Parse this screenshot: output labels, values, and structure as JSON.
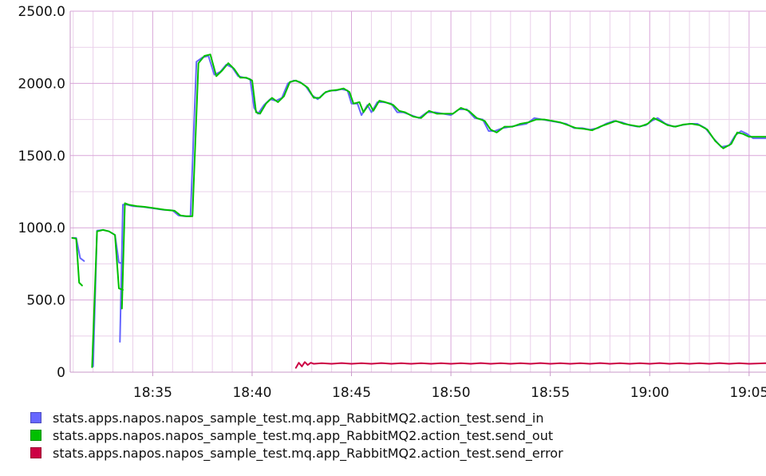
{
  "chart_data": {
    "type": "line",
    "title": "",
    "xlabel": "",
    "ylabel": "",
    "grid": true,
    "legend_position": "bottom-left",
    "x_unit": "minutes since 18:30",
    "xlim": [
      0.85,
      35.85
    ],
    "ylim": [
      0,
      2500
    ],
    "x_ticks": [
      {
        "x": 5,
        "label": "18:35"
      },
      {
        "x": 10,
        "label": "18:40"
      },
      {
        "x": 15,
        "label": "18:45"
      },
      {
        "x": 20,
        "label": "18:50"
      },
      {
        "x": 25,
        "label": "18:55"
      },
      {
        "x": 30,
        "label": "19:00"
      },
      {
        "x": 35,
        "label": "19:05"
      }
    ],
    "y_ticks": [
      {
        "y": 0,
        "label": "0"
      },
      {
        "y": 500,
        "label": "500.0"
      },
      {
        "y": 1000,
        "label": "1000.0"
      },
      {
        "y": 1500,
        "label": "1500.0"
      },
      {
        "y": 2000,
        "label": "2000.0"
      },
      {
        "y": 2500,
        "label": "2500.0"
      }
    ],
    "series": [
      {
        "name": "stats.apps.napos.napos_sample_test.mq.app_RabbitMQ2.action_test.send_in",
        "color": "#6666ff",
        "segments": [
          [
            [
              0.95,
              930
            ],
            [
              1.15,
              930
            ],
            [
              1.35,
              790
            ],
            [
              1.55,
              770
            ]
          ],
          [
            [
              2.0,
              40
            ],
            [
              2.2,
              980
            ],
            [
              2.5,
              985
            ],
            [
              2.8,
              975
            ],
            [
              3.1,
              950
            ],
            [
              3.3,
              760
            ],
            [
              3.5,
              750
            ]
          ],
          [
            [
              3.35,
              210
            ],
            [
              3.5,
              1160
            ],
            [
              3.7,
              1160
            ],
            [
              4.0,
              1150
            ],
            [
              4.5,
              1145
            ],
            [
              5.0,
              1135
            ],
            [
              5.5,
              1125
            ],
            [
              6.0,
              1120
            ],
            [
              6.3,
              1085
            ],
            [
              6.6,
              1080
            ],
            [
              6.9,
              1080
            ],
            [
              7.2,
              2150
            ],
            [
              7.5,
              2180
            ],
            [
              7.8,
              2190
            ],
            [
              8.1,
              2060
            ],
            [
              8.4,
              2080
            ],
            [
              8.7,
              2130
            ],
            [
              9.0,
              2110
            ],
            [
              9.3,
              2050
            ],
            [
              9.6,
              2040
            ],
            [
              9.9,
              2030
            ],
            [
              10.1,
              1830
            ],
            [
              10.3,
              1790
            ],
            [
              10.6,
              1850
            ],
            [
              10.9,
              1890
            ],
            [
              11.2,
              1880
            ],
            [
              11.5,
              1900
            ],
            [
              11.8,
              2000
            ],
            [
              12.1,
              2020
            ],
            [
              12.4,
              2010
            ],
            [
              12.7,
              1980
            ],
            [
              13.0,
              1920
            ],
            [
              13.3,
              1890
            ],
            [
              13.6,
              1930
            ],
            [
              13.9,
              1950
            ],
            [
              14.2,
              1950
            ],
            [
              14.5,
              1960
            ],
            [
              14.8,
              1950
            ],
            [
              15.0,
              1860
            ],
            [
              15.3,
              1860
            ],
            [
              15.5,
              1780
            ],
            [
              15.8,
              1850
            ],
            [
              16.0,
              1800
            ],
            [
              16.3,
              1870
            ],
            [
              16.6,
              1870
            ],
            [
              17.0,
              1860
            ],
            [
              17.3,
              1800
            ],
            [
              17.6,
              1800
            ],
            [
              18.0,
              1780
            ],
            [
              18.4,
              1760
            ],
            [
              18.8,
              1800
            ],
            [
              19.2,
              1800
            ],
            [
              19.6,
              1790
            ],
            [
              20.0,
              1780
            ],
            [
              20.4,
              1820
            ],
            [
              20.8,
              1820
            ],
            [
              21.2,
              1760
            ],
            [
              21.6,
              1750
            ],
            [
              21.9,
              1670
            ],
            [
              22.2,
              1670
            ],
            [
              22.6,
              1690
            ],
            [
              23.0,
              1700
            ],
            [
              23.4,
              1710
            ],
            [
              23.8,
              1720
            ],
            [
              24.2,
              1760
            ],
            [
              24.6,
              1750
            ],
            [
              25.0,
              1740
            ],
            [
              25.4,
              1730
            ],
            [
              25.8,
              1720
            ],
            [
              26.2,
              1690
            ],
            [
              26.6,
              1690
            ],
            [
              27.0,
              1680
            ],
            [
              27.4,
              1690
            ],
            [
              27.8,
              1720
            ],
            [
              28.2,
              1740
            ],
            [
              28.6,
              1730
            ],
            [
              29.0,
              1710
            ],
            [
              29.4,
              1700
            ],
            [
              29.8,
              1710
            ],
            [
              30.1,
              1740
            ],
            [
              30.4,
              1760
            ],
            [
              30.8,
              1720
            ],
            [
              31.2,
              1700
            ],
            [
              31.6,
              1710
            ],
            [
              32.0,
              1720
            ],
            [
              32.4,
              1720
            ],
            [
              32.8,
              1690
            ],
            [
              33.2,
              1620
            ],
            [
              33.6,
              1560
            ],
            [
              34.0,
              1570
            ],
            [
              34.3,
              1640
            ],
            [
              34.6,
              1670
            ],
            [
              34.9,
              1650
            ],
            [
              35.2,
              1620
            ],
            [
              35.85,
              1620
            ]
          ]
        ]
      },
      {
        "name": "stats.apps.napos.napos_sample_test.mq.app_RabbitMQ2.action_test.send_out",
        "color": "#00c000",
        "segments": [
          [
            [
              0.95,
              930
            ],
            [
              1.15,
              925
            ],
            [
              1.3,
              620
            ],
            [
              1.45,
              600
            ]
          ],
          [
            [
              1.95,
              35
            ],
            [
              2.2,
              975
            ],
            [
              2.5,
              985
            ],
            [
              2.8,
              975
            ],
            [
              3.1,
              950
            ],
            [
              3.3,
              580
            ],
            [
              3.5,
              570
            ]
          ],
          [
            [
              3.45,
              440
            ],
            [
              3.6,
              1170
            ],
            [
              3.8,
              1160
            ],
            [
              4.2,
              1150
            ],
            [
              4.6,
              1145
            ],
            [
              5.1,
              1135
            ],
            [
              5.6,
              1125
            ],
            [
              6.1,
              1118
            ],
            [
              6.4,
              1085
            ],
            [
              6.7,
              1080
            ],
            [
              7.0,
              1080
            ],
            [
              7.3,
              2140
            ],
            [
              7.6,
              2190
            ],
            [
              7.9,
              2200
            ],
            [
              8.2,
              2050
            ],
            [
              8.5,
              2090
            ],
            [
              8.8,
              2140
            ],
            [
              9.1,
              2100
            ],
            [
              9.4,
              2040
            ],
            [
              9.7,
              2040
            ],
            [
              10.0,
              2020
            ],
            [
              10.2,
              1800
            ],
            [
              10.4,
              1790
            ],
            [
              10.7,
              1860
            ],
            [
              11.0,
              1900
            ],
            [
              11.3,
              1870
            ],
            [
              11.6,
              1910
            ],
            [
              11.9,
              2010
            ],
            [
              12.2,
              2020
            ],
            [
              12.5,
              2000
            ],
            [
              12.8,
              1970
            ],
            [
              13.1,
              1900
            ],
            [
              13.4,
              1900
            ],
            [
              13.7,
              1940
            ],
            [
              14.0,
              1950
            ],
            [
              14.3,
              1955
            ],
            [
              14.6,
              1965
            ],
            [
              14.9,
              1940
            ],
            [
              15.1,
              1860
            ],
            [
              15.4,
              1870
            ],
            [
              15.6,
              1800
            ],
            [
              15.9,
              1860
            ],
            [
              16.1,
              1810
            ],
            [
              16.4,
              1880
            ],
            [
              16.7,
              1870
            ],
            [
              17.1,
              1850
            ],
            [
              17.4,
              1810
            ],
            [
              17.7,
              1800
            ],
            [
              18.1,
              1770
            ],
            [
              18.5,
              1760
            ],
            [
              18.9,
              1810
            ],
            [
              19.3,
              1790
            ],
            [
              19.7,
              1790
            ],
            [
              20.1,
              1790
            ],
            [
              20.5,
              1830
            ],
            [
              20.9,
              1810
            ],
            [
              21.3,
              1760
            ],
            [
              21.7,
              1740
            ],
            [
              22.0,
              1680
            ],
            [
              22.3,
              1660
            ],
            [
              22.7,
              1700
            ],
            [
              23.1,
              1700
            ],
            [
              23.5,
              1720
            ],
            [
              23.9,
              1730
            ],
            [
              24.3,
              1750
            ],
            [
              24.7,
              1750
            ],
            [
              25.1,
              1740
            ],
            [
              25.5,
              1730
            ],
            [
              25.9,
              1710
            ],
            [
              26.3,
              1690
            ],
            [
              26.7,
              1685
            ],
            [
              27.1,
              1675
            ],
            [
              27.5,
              1700
            ],
            [
              27.9,
              1720
            ],
            [
              28.3,
              1740
            ],
            [
              28.7,
              1720
            ],
            [
              29.1,
              1710
            ],
            [
              29.5,
              1700
            ],
            [
              29.9,
              1720
            ],
            [
              30.2,
              1760
            ],
            [
              30.5,
              1740
            ],
            [
              30.9,
              1710
            ],
            [
              31.3,
              1700
            ],
            [
              31.7,
              1715
            ],
            [
              32.1,
              1720
            ],
            [
              32.5,
              1710
            ],
            [
              32.9,
              1680
            ],
            [
              33.3,
              1600
            ],
            [
              33.7,
              1550
            ],
            [
              34.1,
              1580
            ],
            [
              34.4,
              1660
            ],
            [
              34.7,
              1650
            ],
            [
              35.0,
              1630
            ],
            [
              35.85,
              1630
            ]
          ]
        ]
      },
      {
        "name": "stats.apps.napos.napos_sample_test.mq.app_RabbitMQ2.action_test.send_error",
        "color": "#cc0044",
        "segments": [
          [
            [
              12.2,
              30
            ],
            [
              12.35,
              65
            ],
            [
              12.5,
              40
            ],
            [
              12.65,
              70
            ],
            [
              12.8,
              50
            ],
            [
              12.95,
              65
            ],
            [
              13.1,
              58
            ],
            [
              13.5,
              62
            ],
            [
              14.0,
              58
            ],
            [
              14.5,
              63
            ],
            [
              15.0,
              58
            ],
            [
              15.5,
              62
            ],
            [
              16.0,
              58
            ],
            [
              16.5,
              63
            ],
            [
              17.0,
              58
            ],
            [
              17.5,
              62
            ],
            [
              18.0,
              58
            ],
            [
              18.5,
              62
            ],
            [
              19.0,
              58
            ],
            [
              19.5,
              62
            ],
            [
              20.0,
              58
            ],
            [
              20.5,
              62
            ],
            [
              21.0,
              58
            ],
            [
              21.5,
              63
            ],
            [
              22.0,
              58
            ],
            [
              22.5,
              62
            ],
            [
              23.0,
              58
            ],
            [
              23.5,
              62
            ],
            [
              24.0,
              58
            ],
            [
              24.5,
              63
            ],
            [
              25.0,
              58
            ],
            [
              25.5,
              62
            ],
            [
              26.0,
              58
            ],
            [
              26.5,
              62
            ],
            [
              27.0,
              58
            ],
            [
              27.5,
              63
            ],
            [
              28.0,
              58
            ],
            [
              28.5,
              62
            ],
            [
              29.0,
              58
            ],
            [
              29.5,
              62
            ],
            [
              30.0,
              58
            ],
            [
              30.5,
              63
            ],
            [
              31.0,
              58
            ],
            [
              31.5,
              62
            ],
            [
              32.0,
              58
            ],
            [
              32.5,
              62
            ],
            [
              33.0,
              58
            ],
            [
              33.5,
              63
            ],
            [
              34.0,
              58
            ],
            [
              34.5,
              62
            ],
            [
              35.0,
              58
            ],
            [
              35.85,
              62
            ]
          ]
        ]
      }
    ]
  }
}
